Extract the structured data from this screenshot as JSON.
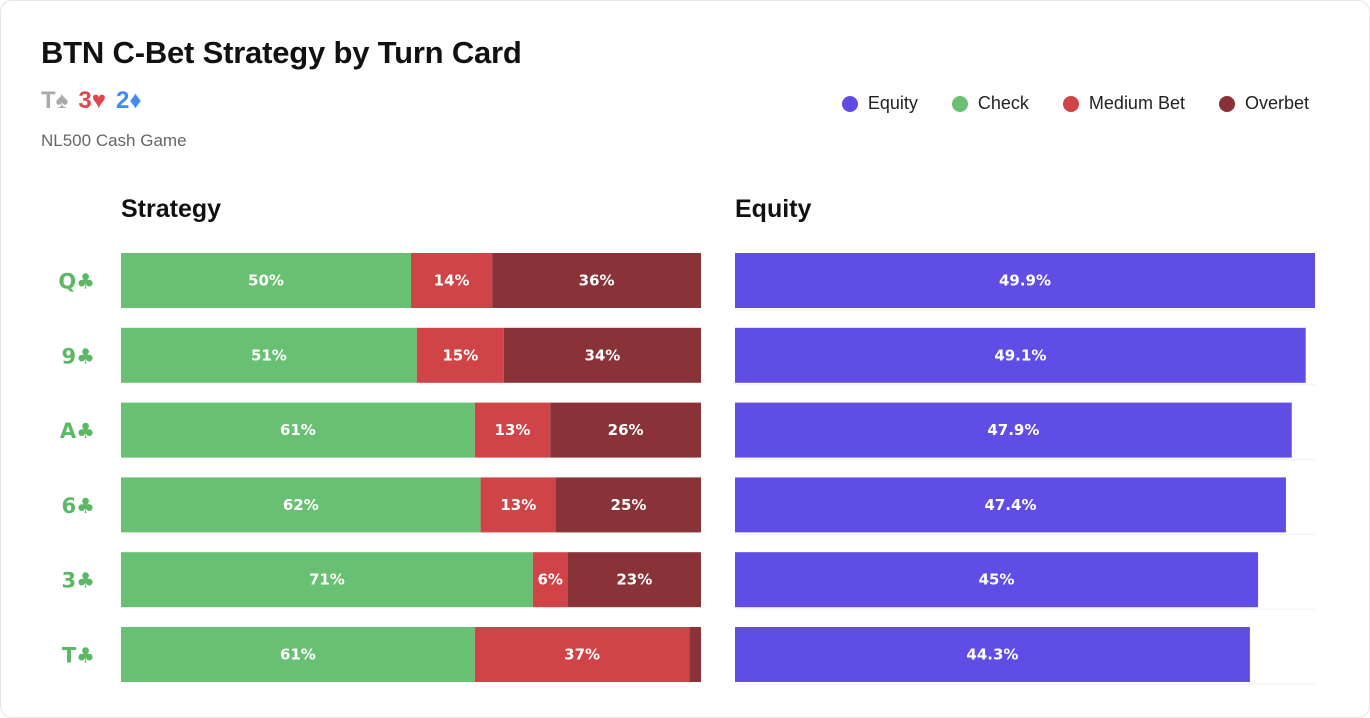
{
  "title": "BTN C-Bet Strategy by Turn Card",
  "subtitle": "NL500 Cash Game",
  "board": [
    {
      "label": "T♠",
      "color": "#aaaaaa"
    },
    {
      "label": "3♥",
      "color": "#e0474c"
    },
    {
      "label": "2♦",
      "color": "#3f8cf0"
    }
  ],
  "legend": [
    {
      "name": "Equity",
      "color": "#604de6"
    },
    {
      "name": "Check",
      "color": "#68c072"
    },
    {
      "name": "Medium Bet",
      "color": "#d04346"
    },
    {
      "name": "Overbet",
      "color": "#893237"
    }
  ],
  "colors": {
    "equity": "#604de6",
    "check": "#68c072",
    "medium_bet": "#d04346",
    "overbet": "#893237",
    "turn_label": "#5bb865"
  },
  "chart_data": [
    {
      "type": "bar",
      "orientation": "horizontal",
      "stacked": true,
      "title": "Strategy",
      "categories": [
        "Q♣",
        "9♣",
        "A♣",
        "6♣",
        "3♣",
        "T♣"
      ],
      "series": [
        {
          "name": "Check",
          "values": [
            50,
            51,
            61,
            62,
            71,
            61
          ],
          "labels": [
            "50%",
            "51%",
            "61%",
            "62%",
            "71%",
            "61%"
          ]
        },
        {
          "name": "Medium Bet",
          "values": [
            14,
            15,
            13,
            13,
            6,
            37
          ],
          "labels": [
            "14%",
            "15%",
            "13%",
            "13%",
            "6%",
            "37%"
          ]
        },
        {
          "name": "Overbet",
          "values": [
            36,
            34,
            26,
            25,
            23,
            2
          ],
          "labels": [
            "36%",
            "34%",
            "26%",
            "25%",
            "23%",
            ""
          ]
        }
      ],
      "xlim": [
        0,
        100
      ]
    },
    {
      "type": "bar",
      "orientation": "horizontal",
      "title": "Equity",
      "categories": [
        "Q♣",
        "9♣",
        "A♣",
        "6♣",
        "3♣",
        "T♣"
      ],
      "series": [
        {
          "name": "Equity",
          "values": [
            49.9,
            49.1,
            47.9,
            47.4,
            45,
            44.3
          ],
          "labels": [
            "49.9%",
            "49.1%",
            "47.9%",
            "47.4%",
            "45%",
            "44.3%"
          ]
        }
      ],
      "xlim": [
        0,
        49.9
      ]
    }
  ]
}
